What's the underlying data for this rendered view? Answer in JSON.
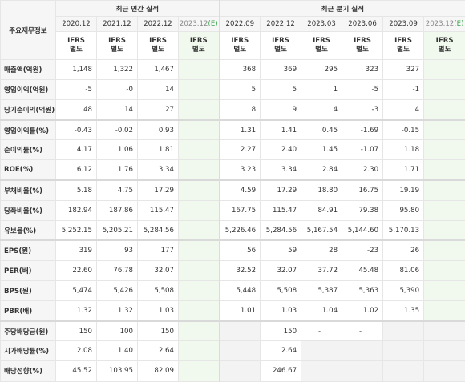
{
  "header": {
    "corner": "주요재무정보",
    "annual_title": "최근 연간 실적",
    "quarter_title": "최근 분기 실적",
    "annual_periods": [
      "2020.12",
      "2021.12",
      "2022.12",
      "2023.12"
    ],
    "quarter_periods": [
      "2022.09",
      "2022.12",
      "2023.03",
      "2023.06",
      "2023.09",
      "2023.12"
    ],
    "estimate_mark": "(E)",
    "ifrs_line1": "IFRS",
    "ifrs_line2": "별도"
  },
  "rows": [
    {
      "label": "매출액(억원)",
      "values": [
        "1,148",
        "1,322",
        "1,467",
        "",
        "368",
        "369",
        "295",
        "323",
        "327",
        ""
      ]
    },
    {
      "label": "영업이익(억원)",
      "values": [
        "-5",
        "-0",
        "14",
        "",
        "5",
        "5",
        "1",
        "-5",
        "-1",
        ""
      ]
    },
    {
      "label": "당기순이익(억원)",
      "values": [
        "48",
        "14",
        "27",
        "",
        "8",
        "9",
        "4",
        "-3",
        "4",
        ""
      ]
    },
    {
      "label": "영업이익률(%)",
      "values": [
        "-0.43",
        "-0.02",
        "0.93",
        "",
        "1.31",
        "1.41",
        "0.45",
        "-1.69",
        "-0.15",
        ""
      ]
    },
    {
      "label": "순이익률(%)",
      "values": [
        "4.17",
        "1.06",
        "1.81",
        "",
        "2.27",
        "2.40",
        "1.45",
        "-1.07",
        "1.18",
        ""
      ]
    },
    {
      "label": "ROE(%)",
      "values": [
        "6.12",
        "1.76",
        "3.34",
        "",
        "3.23",
        "3.34",
        "2.84",
        "2.30",
        "1.71",
        ""
      ]
    },
    {
      "label": "부채비율(%)",
      "values": [
        "5.18",
        "4.75",
        "17.29",
        "",
        "4.59",
        "17.29",
        "18.80",
        "16.75",
        "19.19",
        ""
      ]
    },
    {
      "label": "당좌비율(%)",
      "values": [
        "182.94",
        "187.86",
        "115.47",
        "",
        "167.75",
        "115.47",
        "84.91",
        "79.38",
        "95.80",
        ""
      ]
    },
    {
      "label": "유보율(%)",
      "values": [
        "5,252.15",
        "5,205.21",
        "5,284.56",
        "",
        "5,226.46",
        "5,284.56",
        "5,167.54",
        "5,144.60",
        "5,170.13",
        ""
      ]
    },
    {
      "label": "EPS(원)",
      "values": [
        "319",
        "93",
        "177",
        "",
        "56",
        "59",
        "28",
        "-23",
        "26",
        ""
      ]
    },
    {
      "label": "PER(배)",
      "values": [
        "22.60",
        "76.78",
        "32.07",
        "",
        "32.52",
        "32.07",
        "37.72",
        "45.48",
        "81.06",
        ""
      ]
    },
    {
      "label": "BPS(원)",
      "values": [
        "5,474",
        "5,426",
        "5,508",
        "",
        "5,448",
        "5,508",
        "5,387",
        "5,363",
        "5,390",
        ""
      ]
    },
    {
      "label": "PBR(배)",
      "values": [
        "1.32",
        "1.32",
        "1.03",
        "",
        "1.01",
        "1.03",
        "1.04",
        "1.02",
        "1.35",
        ""
      ]
    },
    {
      "label": "주당배당금(원)",
      "values": [
        "150",
        "100",
        "150",
        "",
        "",
        "150",
        "-",
        "-",
        "",
        ""
      ]
    },
    {
      "label": "시가배당률(%)",
      "values": [
        "2.08",
        "1.40",
        "2.64",
        "",
        "",
        "2.64",
        "",
        "",
        "",
        ""
      ]
    },
    {
      "label": "배당성향(%)",
      "values": [
        "45.52",
        "103.95",
        "82.09",
        "",
        "",
        "246.67",
        "",
        "",
        "",
        ""
      ]
    }
  ]
}
